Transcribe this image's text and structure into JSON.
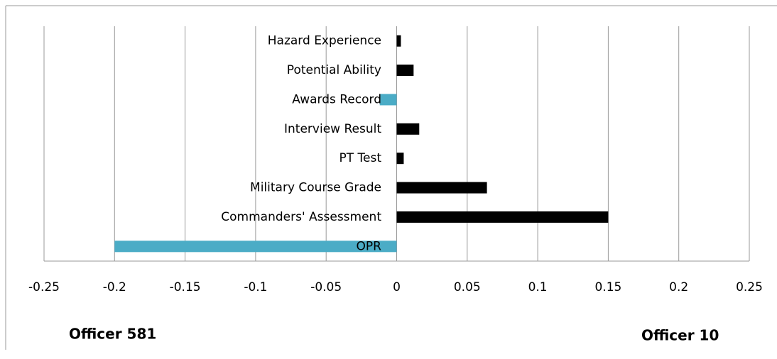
{
  "chart_data": {
    "type": "bar",
    "orientation": "horizontal",
    "categories": [
      "Hazard Experience",
      "Potential Ability",
      "Awards Record",
      "Interview Result",
      "PT Test",
      "Military Course Grade",
      "Commanders' Assessment",
      "OPR"
    ],
    "values": [
      0.003,
      0.012,
      -0.012,
      0.016,
      0.005,
      0.064,
      0.15,
      -0.2
    ],
    "colors": [
      "#000000",
      "#000000",
      "#4bacc6",
      "#000000",
      "#000000",
      "#000000",
      "#000000",
      "#4bacc6"
    ],
    "xlim": [
      -0.25,
      0.25
    ],
    "xticks": [
      -0.25,
      -0.2,
      -0.15,
      -0.1,
      -0.05,
      0,
      0.05,
      0.1,
      0.15,
      0.2,
      0.25
    ],
    "grid": true,
    "annotations": [
      "Officer 581",
      "Officer 10"
    ]
  }
}
